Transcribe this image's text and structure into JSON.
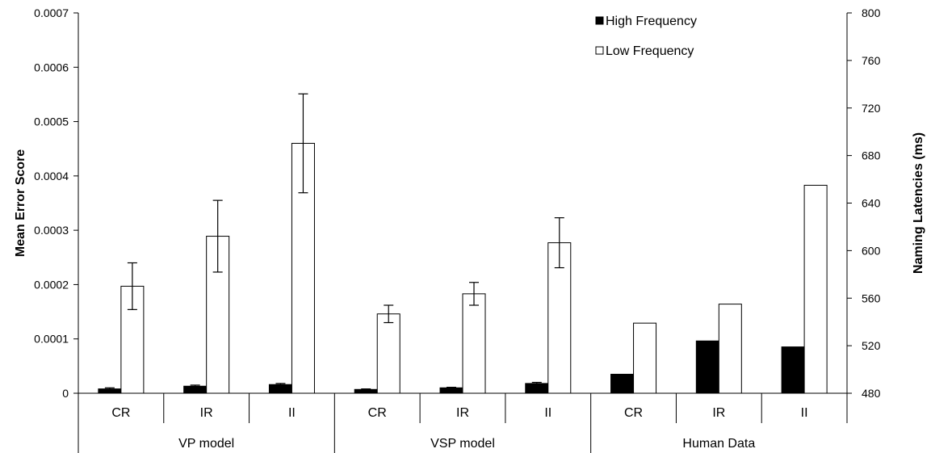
{
  "chart_data": {
    "type": "bar",
    "groups": [
      "VP model",
      "VSP model",
      "Human Data"
    ],
    "categories": [
      "CR",
      "IR",
      "II",
      "CR",
      "IR",
      "II",
      "CR",
      "IR",
      "II"
    ],
    "legend": [
      "High Frequency",
      "Low Frequency"
    ],
    "legend_placement": "top-center",
    "grid": false,
    "ylabel": "Mean Error Score",
    "y2label": "Naming Latencies (ms)",
    "ylim": [
      0,
      0.0007
    ],
    "y2lim": [
      480,
      800
    ],
    "yticks": [
      "0",
      "0.0001",
      "0.0002",
      "0.0003",
      "0.0004",
      "0.0005",
      "0.0006",
      "0.0007"
    ],
    "y2ticks": [
      "480",
      "520",
      "560",
      "600",
      "640",
      "680",
      "720",
      "760",
      "800"
    ],
    "model_series": [
      {
        "name": "High Frequency",
        "color": "#000000",
        "values": [
          8e-06,
          1.3e-05,
          1.6e-05,
          7e-06,
          1e-05,
          1.8e-05
        ],
        "errors": [
          2e-06,
          2e-06,
          2e-06,
          1e-06,
          1e-06,
          2e-06
        ]
      },
      {
        "name": "Low Frequency",
        "color": "#ffffff",
        "values": [
          0.000197,
          0.000289,
          0.00046,
          0.000146,
          0.000183,
          0.000277
        ],
        "errors": [
          4.3e-05,
          6.6e-05,
          9.1e-05,
          1.6e-05,
          2.1e-05,
          4.6e-05
        ]
      }
    ],
    "human_series": [
      {
        "name": "High Frequency",
        "color": "#000000",
        "values": [
          496,
          524,
          519
        ]
      },
      {
        "name": "Low Frequency",
        "color": "#ffffff",
        "values": [
          539,
          555,
          655
        ]
      }
    ]
  }
}
